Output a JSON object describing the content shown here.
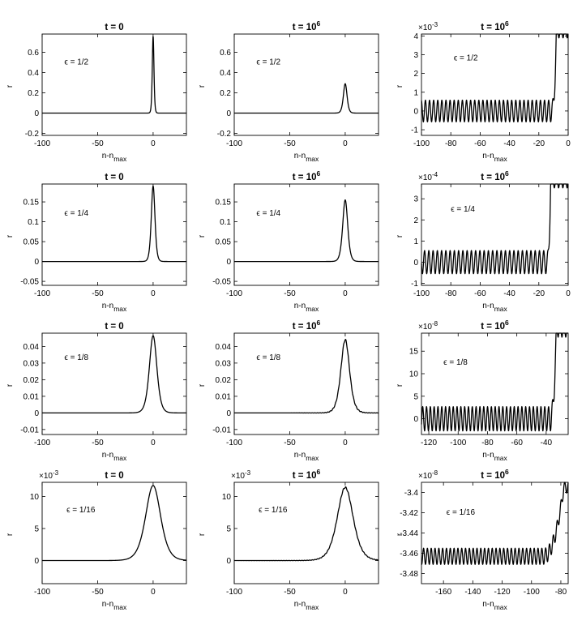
{
  "chart_data": [
    {
      "type": "line",
      "title": {
        "t": "t = 0",
        "exp": ""
      },
      "xlabel": {
        "main": "n-n",
        "sub": "max"
      },
      "ylabel": "r",
      "xlim": [
        -100,
        30
      ],
      "ylim": [
        -0.22,
        0.78
      ],
      "xticks": [
        -100,
        -50,
        0
      ],
      "xtick_labels": [
        "-100",
        "-50",
        "0"
      ],
      "yticks": [
        -0.2,
        0,
        0.2,
        0.4,
        0.6
      ],
      "ytick_labels": [
        "-0.2",
        "0",
        "0.2",
        "0.4",
        "0.6"
      ],
      "multiplier": "",
      "annotation": {
        "text": "ϵ = 1/2",
        "x": -80,
        "y": 0.48
      },
      "curve": {
        "kind": "peak",
        "amp": 0.76,
        "width": 1.0,
        "base": 0,
        "noise": 0
      }
    },
    {
      "type": "line",
      "title": {
        "t": "t = 10",
        "exp": "6"
      },
      "xlabel": {
        "main": "n-n",
        "sub": "max"
      },
      "ylabel": "r",
      "xlim": [
        -100,
        30
      ],
      "ylim": [
        -0.22,
        0.78
      ],
      "xticks": [
        -100,
        -50,
        0
      ],
      "xtick_labels": [
        "-100",
        "-50",
        "0"
      ],
      "yticks": [
        -0.2,
        0,
        0.2,
        0.4,
        0.6
      ],
      "ytick_labels": [
        "-0.2",
        "0",
        "0.2",
        "0.4",
        "0.6"
      ],
      "multiplier": "",
      "annotation": {
        "text": "ϵ = 1/2",
        "x": -80,
        "y": 0.48
      },
      "curve": {
        "kind": "peak",
        "amp": 0.29,
        "width": 2.2,
        "base": 0,
        "noise": 0
      }
    },
    {
      "type": "line",
      "title": {
        "t": "t = 10",
        "exp": "6"
      },
      "xlabel": {
        "main": "n-n",
        "sub": "max"
      },
      "ylabel": "r",
      "xlim": [
        -100,
        0
      ],
      "ylim": [
        -1.3,
        4.1
      ],
      "xticks": [
        -100,
        -80,
        -60,
        -40,
        -20,
        0
      ],
      "xtick_labels": [
        "-100",
        "-80",
        "-60",
        "-40",
        "-20",
        "0"
      ],
      "yticks": [
        -1,
        0,
        1,
        2,
        3,
        4
      ],
      "ytick_labels": [
        "-1",
        "0",
        "1",
        "2",
        "3",
        "4"
      ],
      "multiplier": "×10",
      "multiplier_exp": "-3",
      "annotation": {
        "text": "ϵ = 1/2",
        "x": -78,
        "y": 2.7
      },
      "curve": {
        "kind": "osc",
        "base": 0,
        "amp": 0.58,
        "period": 2.8,
        "rise_start": -11,
        "rise_end": -8,
        "rise_to": 4.3
      }
    },
    {
      "type": "line",
      "title": {
        "t": "t = 0",
        "exp": ""
      },
      "xlabel": {
        "main": "n-n",
        "sub": "max"
      },
      "ylabel": "r",
      "xlim": [
        -100,
        30
      ],
      "ylim": [
        -0.06,
        0.195
      ],
      "xticks": [
        -100,
        -50,
        0
      ],
      "xtick_labels": [
        "-100",
        "-50",
        "0"
      ],
      "yticks": [
        -0.05,
        0,
        0.05,
        0.1,
        0.15
      ],
      "ytick_labels": [
        "-0.05",
        "0",
        "0.05",
        "0.1",
        "0.15"
      ],
      "multiplier": "",
      "annotation": {
        "text": "ϵ = 1/4",
        "x": -80,
        "y": 0.115
      },
      "curve": {
        "kind": "peak",
        "amp": 0.19,
        "width": 2.2,
        "base": 0,
        "noise": 0
      }
    },
    {
      "type": "line",
      "title": {
        "t": "t = 10",
        "exp": "6"
      },
      "xlabel": {
        "main": "n-n",
        "sub": "max"
      },
      "ylabel": "r",
      "xlim": [
        -100,
        30
      ],
      "ylim": [
        -0.06,
        0.195
      ],
      "xticks": [
        -100,
        -50,
        0
      ],
      "xtick_labels": [
        "-100",
        "-50",
        "0"
      ],
      "yticks": [
        -0.05,
        0,
        0.05,
        0.1,
        0.15
      ],
      "ytick_labels": [
        "-0.05",
        "0",
        "0.05",
        "0.1",
        "0.15"
      ],
      "multiplier": "",
      "annotation": {
        "text": "ϵ = 1/4",
        "x": -80,
        "y": 0.115
      },
      "curve": {
        "kind": "peak",
        "amp": 0.155,
        "width": 3.0,
        "base": 0,
        "noise": 0
      }
    },
    {
      "type": "line",
      "title": {
        "t": "t = 10",
        "exp": "6"
      },
      "xlabel": {
        "main": "n-n",
        "sub": "max"
      },
      "ylabel": "r",
      "xlim": [
        -100,
        0
      ],
      "ylim": [
        -1.1,
        3.7
      ],
      "xticks": [
        -100,
        -80,
        -60,
        -40,
        -20,
        0
      ],
      "xtick_labels": [
        "-100",
        "-80",
        "-60",
        "-40",
        "-20",
        "0"
      ],
      "yticks": [
        -1,
        0,
        1,
        2,
        3
      ],
      "ytick_labels": [
        "-1",
        "0",
        "1",
        "2",
        "3"
      ],
      "multiplier": "×10",
      "multiplier_exp": "-4",
      "annotation": {
        "text": "ϵ = 1/4",
        "x": -80,
        "y": 2.4
      },
      "curve": {
        "kind": "osc",
        "base": 0,
        "amp": 0.55,
        "period": 2.9,
        "rise_start": -14,
        "rise_end": -12,
        "rise_to": 3.9
      }
    },
    {
      "type": "line",
      "title": {
        "t": "t = 0",
        "exp": ""
      },
      "xlabel": {
        "main": "n-n",
        "sub": "max"
      },
      "ylabel": "r",
      "xlim": [
        -100,
        30
      ],
      "ylim": [
        -0.013,
        0.048
      ],
      "xticks": [
        -100,
        -50,
        0
      ],
      "xtick_labels": [
        "-100",
        "-50",
        "0"
      ],
      "yticks": [
        -0.01,
        0,
        0.01,
        0.02,
        0.03,
        0.04
      ],
      "ytick_labels": [
        "-0.01",
        "0",
        "0.01",
        "0.02",
        "0.03",
        "0.04"
      ],
      "multiplier": "",
      "annotation": {
        "text": "ϵ = 1/8",
        "x": -80,
        "y": 0.032
      },
      "curve": {
        "kind": "peak",
        "amp": 0.0465,
        "width": 4.5,
        "base": 0,
        "noise": 0
      }
    },
    {
      "type": "line",
      "title": {
        "t": "t = 10",
        "exp": "6"
      },
      "xlabel": {
        "main": "n-n",
        "sub": "max"
      },
      "ylabel": "r",
      "xlim": [
        -100,
        30
      ],
      "ylim": [
        -0.013,
        0.048
      ],
      "xticks": [
        -100,
        -50,
        0
      ],
      "xtick_labels": [
        "-100",
        "-50",
        "0"
      ],
      "yticks": [
        -0.01,
        0,
        0.01,
        0.02,
        0.03,
        0.04
      ],
      "ytick_labels": [
        "-0.01",
        "0",
        "0.01",
        "0.02",
        "0.03",
        "0.04"
      ],
      "multiplier": "",
      "annotation": {
        "text": "ϵ = 1/8",
        "x": -80,
        "y": 0.032
      },
      "curve": {
        "kind": "peak",
        "amp": 0.044,
        "width": 5.2,
        "base": 0,
        "noise": 0.0006
      }
    },
    {
      "type": "line",
      "title": {
        "t": "t = 10",
        "exp": "6"
      },
      "xlabel": {
        "main": "n-n",
        "sub": "max"
      },
      "ylabel": "r",
      "xlim": [
        -125,
        -25
      ],
      "ylim": [
        -3.5,
        19
      ],
      "xticks": [
        -120,
        -100,
        -80,
        -60,
        -40
      ],
      "xtick_labels": [
        "-120",
        "-100",
        "-80",
        "-60",
        "-40"
      ],
      "yticks": [
        0,
        5,
        10,
        15
      ],
      "ytick_labels": [
        "0",
        "5",
        "10",
        "15"
      ],
      "multiplier": "×10",
      "multiplier_exp": "-8",
      "annotation": {
        "text": "ϵ = 1/8",
        "x": -110,
        "y": 12
      },
      "curve": {
        "kind": "osc",
        "base": 0,
        "amp": 2.7,
        "period": 2.6,
        "rise_start": -37,
        "rise_end": -33,
        "rise_to": 20
      }
    },
    {
      "type": "line",
      "title": {
        "t": "t = 0",
        "exp": ""
      },
      "xlabel": {
        "main": "n-n",
        "sub": "max"
      },
      "ylabel": "r",
      "xlim": [
        -100,
        30
      ],
      "ylim": [
        -3.6,
        12.2
      ],
      "xticks": [
        -100,
        -50,
        0
      ],
      "xtick_labels": [
        "-100",
        "-50",
        "0"
      ],
      "yticks": [
        0,
        5,
        10
      ],
      "ytick_labels": [
        "0",
        "5",
        "10"
      ],
      "multiplier": "×10",
      "multiplier_exp": "-3",
      "annotation": {
        "text": "ϵ = 1/16",
        "x": -78,
        "y": 7.5
      },
      "curve": {
        "kind": "peak",
        "amp": 11.7,
        "width": 9,
        "base": 0,
        "noise": 0
      }
    },
    {
      "type": "line",
      "title": {
        "t": "t = 10",
        "exp": "6"
      },
      "xlabel": {
        "main": "n-n",
        "sub": "max"
      },
      "ylabel": "r",
      "xlim": [
        -100,
        30
      ],
      "ylim": [
        -3.6,
        12.2
      ],
      "xticks": [
        -100,
        -50,
        0
      ],
      "xtick_labels": [
        "-100",
        "-50",
        "0"
      ],
      "yticks": [
        0,
        5,
        10
      ],
      "ytick_labels": [
        "0",
        "5",
        "10"
      ],
      "multiplier": "×10",
      "multiplier_exp": "-3",
      "annotation": {
        "text": "ϵ = 1/16",
        "x": -78,
        "y": 7.5
      },
      "curve": {
        "kind": "peak",
        "amp": 11.4,
        "width": 9.5,
        "base": 0,
        "noise": 0.12
      }
    },
    {
      "type": "line",
      "title": {
        "t": "t = 10",
        "exp": "6"
      },
      "xlabel": {
        "main": "n-n",
        "sub": "max"
      },
      "ylabel": "r",
      "xlim": [
        -175,
        -75
      ],
      "ylim": [
        -3.49,
        -3.39
      ],
      "xticks": [
        -160,
        -140,
        -120,
        -100,
        -80
      ],
      "xtick_labels": [
        "-160",
        "-140",
        "-120",
        "-100",
        "-80"
      ],
      "yticks": [
        -3.48,
        -3.46,
        -3.44,
        -3.42,
        -3.4
      ],
      "ytick_labels": [
        "-3.48",
        "-3.46",
        "-3.44",
        "-3.42",
        "-3.4"
      ],
      "multiplier": "×10",
      "multiplier_exp": "-8",
      "annotation": {
        "text": "ϵ = 1/16",
        "x": -158,
        "y": -3.422
      },
      "curve": {
        "kind": "osc",
        "base": -3.463,
        "amp": 0.008,
        "period": 2.6,
        "rise_start": -92,
        "rise_end": -78,
        "rise_to": -3.395
      }
    }
  ]
}
